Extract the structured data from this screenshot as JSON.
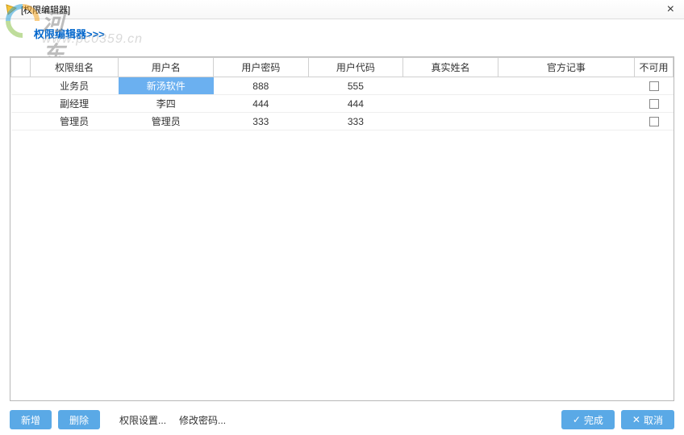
{
  "window": {
    "title": "[权限编辑器]"
  },
  "header": {
    "link": "权限编辑器>>>"
  },
  "watermark": {
    "big": "河东软件园",
    "small": "www.pc0359.cn"
  },
  "table": {
    "columns": [
      "权限组名",
      "用户名",
      "用户密码",
      "用户代码",
      "真实姓名",
      "官方记事",
      "不可用"
    ],
    "rows": [
      {
        "group": "业务员",
        "user": "新汤软件",
        "pwd": "888",
        "code": "555",
        "real": "",
        "note": "",
        "disabled": false,
        "selectedCol": "user"
      },
      {
        "group": "副经理",
        "user": "李四",
        "pwd": "444",
        "code": "444",
        "real": "",
        "note": "",
        "disabled": false
      },
      {
        "group": "管理员",
        "user": "管理员",
        "pwd": "333",
        "code": "333",
        "real": "",
        "note": "",
        "disabled": false
      }
    ]
  },
  "footer": {
    "add": "新增",
    "delete": "删除",
    "perm": "权限设置...",
    "chpwd": "修改密码...",
    "done": "完成",
    "cancel": "取消"
  },
  "colors": {
    "accent": "#5aa9e6",
    "selection": "#6bb0f0",
    "border": "#b8b8b8"
  }
}
